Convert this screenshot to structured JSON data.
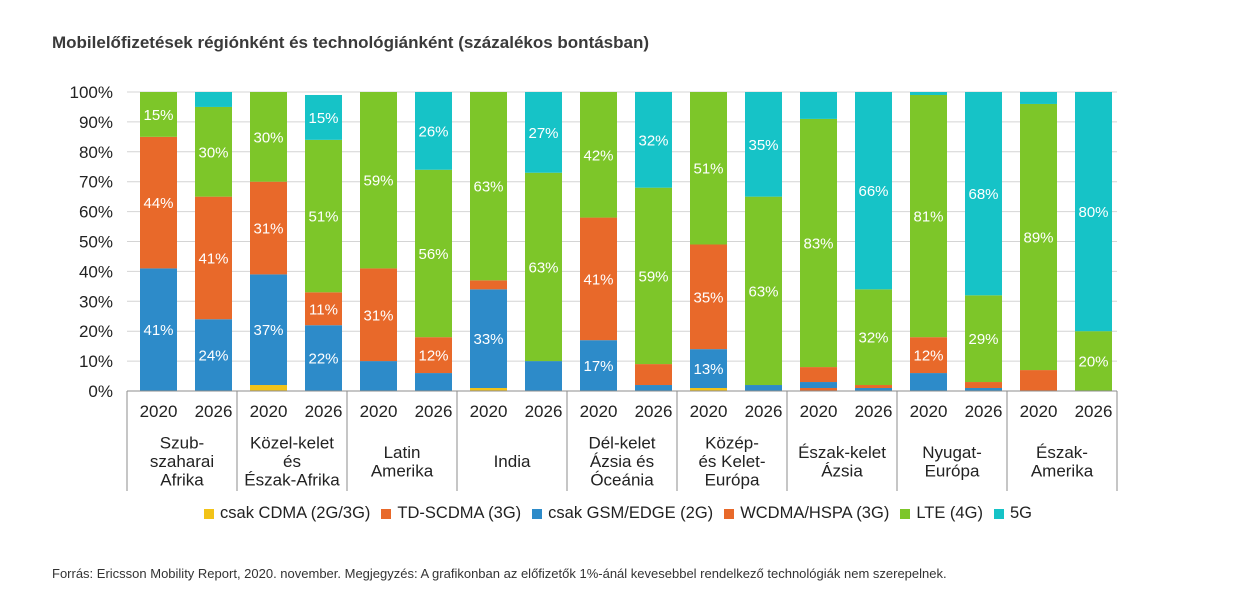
{
  "title": "Mobilelőfizetések régiónként és technológiánként (százalékos bontásban)",
  "source": "Forrás: Ericsson Mobility Report, 2020. november. Megjegyzés: A grafikonban az előfizetők 1%-ánál kevesebbel rendelkező technológiák nem szerepelnek.",
  "chart_data": {
    "type": "bar",
    "stacked": true,
    "ylim": [
      0,
      100
    ],
    "y_ticks": [
      "0%",
      "10%",
      "20%",
      "30%",
      "40%",
      "50%",
      "60%",
      "70%",
      "80%",
      "90%",
      "100%"
    ],
    "grid": true,
    "legend_position": "bottom",
    "series": [
      {
        "name": "csak CDMA (2G/3G)",
        "color": "#f2c318"
      },
      {
        "name": "TD-SCDMA (3G)",
        "color": "#e8692a"
      },
      {
        "name": "csak GSM/EDGE (2G)",
        "color": "#2d8bc9"
      },
      {
        "name": "WCDMA/HSPA (3G)",
        "color": "#e8692a"
      },
      {
        "name": "LTE (4G)",
        "color": "#7dc629"
      },
      {
        "name": "5G",
        "color": "#16c3c7"
      }
    ],
    "groups": [
      {
        "label": [
          "Szub-",
          "szaharai",
          "Afrika"
        ],
        "bars": [
          {
            "year": "2020",
            "values": [
              0,
              0,
              41,
              44,
              15,
              0
            ],
            "labels": [
              "",
              "",
              "41%",
              "44%",
              "15%",
              ""
            ]
          },
          {
            "year": "2026",
            "values": [
              0,
              0,
              24,
              41,
              30,
              5
            ],
            "labels": [
              "",
              "",
              "24%",
              "41%",
              "30%",
              ""
            ]
          }
        ]
      },
      {
        "label": [
          "Közel-kelet",
          "és",
          "Észak-Afrika"
        ],
        "bars": [
          {
            "year": "2020",
            "values": [
              2,
              0,
              37,
              31,
              30,
              0
            ],
            "labels": [
              "",
              "",
              "37%",
              "31%",
              "30%",
              ""
            ]
          },
          {
            "year": "2026",
            "values": [
              0,
              0,
              22,
              11,
              51,
              15
            ],
            "labels": [
              "",
              "",
              "22%",
              "11%",
              "51%",
              "15%"
            ]
          }
        ]
      },
      {
        "label": [
          "Latin",
          "Amerika"
        ],
        "bars": [
          {
            "year": "2020",
            "values": [
              0,
              0,
              10,
              31,
              59,
              0
            ],
            "labels": [
              "",
              "",
              "",
              "31%",
              "59%",
              ""
            ]
          },
          {
            "year": "2026",
            "values": [
              0,
              0,
              6,
              12,
              56,
              26
            ],
            "labels": [
              "",
              "",
              "",
              "12%",
              "56%",
              "26%"
            ]
          }
        ]
      },
      {
        "label": [
          "India"
        ],
        "bars": [
          {
            "year": "2020",
            "values": [
              1,
              0,
              33,
              3,
              63,
              0
            ],
            "labels": [
              "",
              "",
              "33%",
              "",
              "63%",
              ""
            ]
          },
          {
            "year": "2026",
            "values": [
              0,
              0,
              10,
              0,
              63,
              27
            ],
            "labels": [
              "",
              "",
              "",
              "",
              "63%",
              "27%"
            ]
          }
        ]
      },
      {
        "label": [
          "Dél-kelet",
          "Ázsia és",
          "Óceánia"
        ],
        "bars": [
          {
            "year": "2020",
            "values": [
              0,
              0,
              17,
              41,
              42,
              0
            ],
            "labels": [
              "",
              "",
              "17%",
              "41%",
              "42%",
              ""
            ]
          },
          {
            "year": "2026",
            "values": [
              0,
              0,
              2,
              7,
              59,
              32
            ],
            "labels": [
              "",
              "",
              "",
              "",
              "59%",
              "32%"
            ]
          }
        ]
      },
      {
        "label": [
          "Közép-",
          "és Kelet-",
          "Európa"
        ],
        "bars": [
          {
            "year": "2020",
            "values": [
              1,
              0,
              13,
              35,
              51,
              0
            ],
            "labels": [
              "",
              "",
              "13%",
              "35%",
              "51%",
              ""
            ]
          },
          {
            "year": "2026",
            "values": [
              0,
              0,
              2,
              0,
              63,
              35
            ],
            "labels": [
              "",
              "",
              "",
              "",
              "63%",
              "35%"
            ]
          }
        ]
      },
      {
        "label": [
          "Észak-kelet",
          "Ázsia"
        ],
        "bars": [
          {
            "year": "2020",
            "values": [
              0,
              1,
              2,
              5,
              83,
              9
            ],
            "labels": [
              "",
              "",
              "",
              "",
              "83%",
              ""
            ]
          },
          {
            "year": "2026",
            "values": [
              0,
              0,
              1,
              1,
              32,
              66
            ],
            "labels": [
              "",
              "",
              "",
              "",
              "32%",
              "66%"
            ]
          }
        ]
      },
      {
        "label": [
          "Nyugat-",
          "Európa"
        ],
        "bars": [
          {
            "year": "2020",
            "values": [
              0,
              0,
              6,
              12,
              81,
              1
            ],
            "labels": [
              "",
              "",
              "",
              "12%",
              "81%",
              ""
            ]
          },
          {
            "year": "2026",
            "values": [
              0,
              0,
              1,
              2,
              29,
              68
            ],
            "labels": [
              "",
              "",
              "",
              "",
              "29%",
              "68%"
            ]
          }
        ]
      },
      {
        "label": [
          "Észak-",
          "Amerika"
        ],
        "bars": [
          {
            "year": "2020",
            "values": [
              0,
              0,
              0,
              7,
              89,
              4
            ],
            "labels": [
              "",
              "",
              "",
              "",
              "89%",
              ""
            ]
          },
          {
            "year": "2026",
            "values": [
              0,
              0,
              0,
              0,
              20,
              80
            ],
            "labels": [
              "",
              "",
              "",
              "",
              "20%",
              "80%"
            ]
          }
        ]
      }
    ]
  }
}
